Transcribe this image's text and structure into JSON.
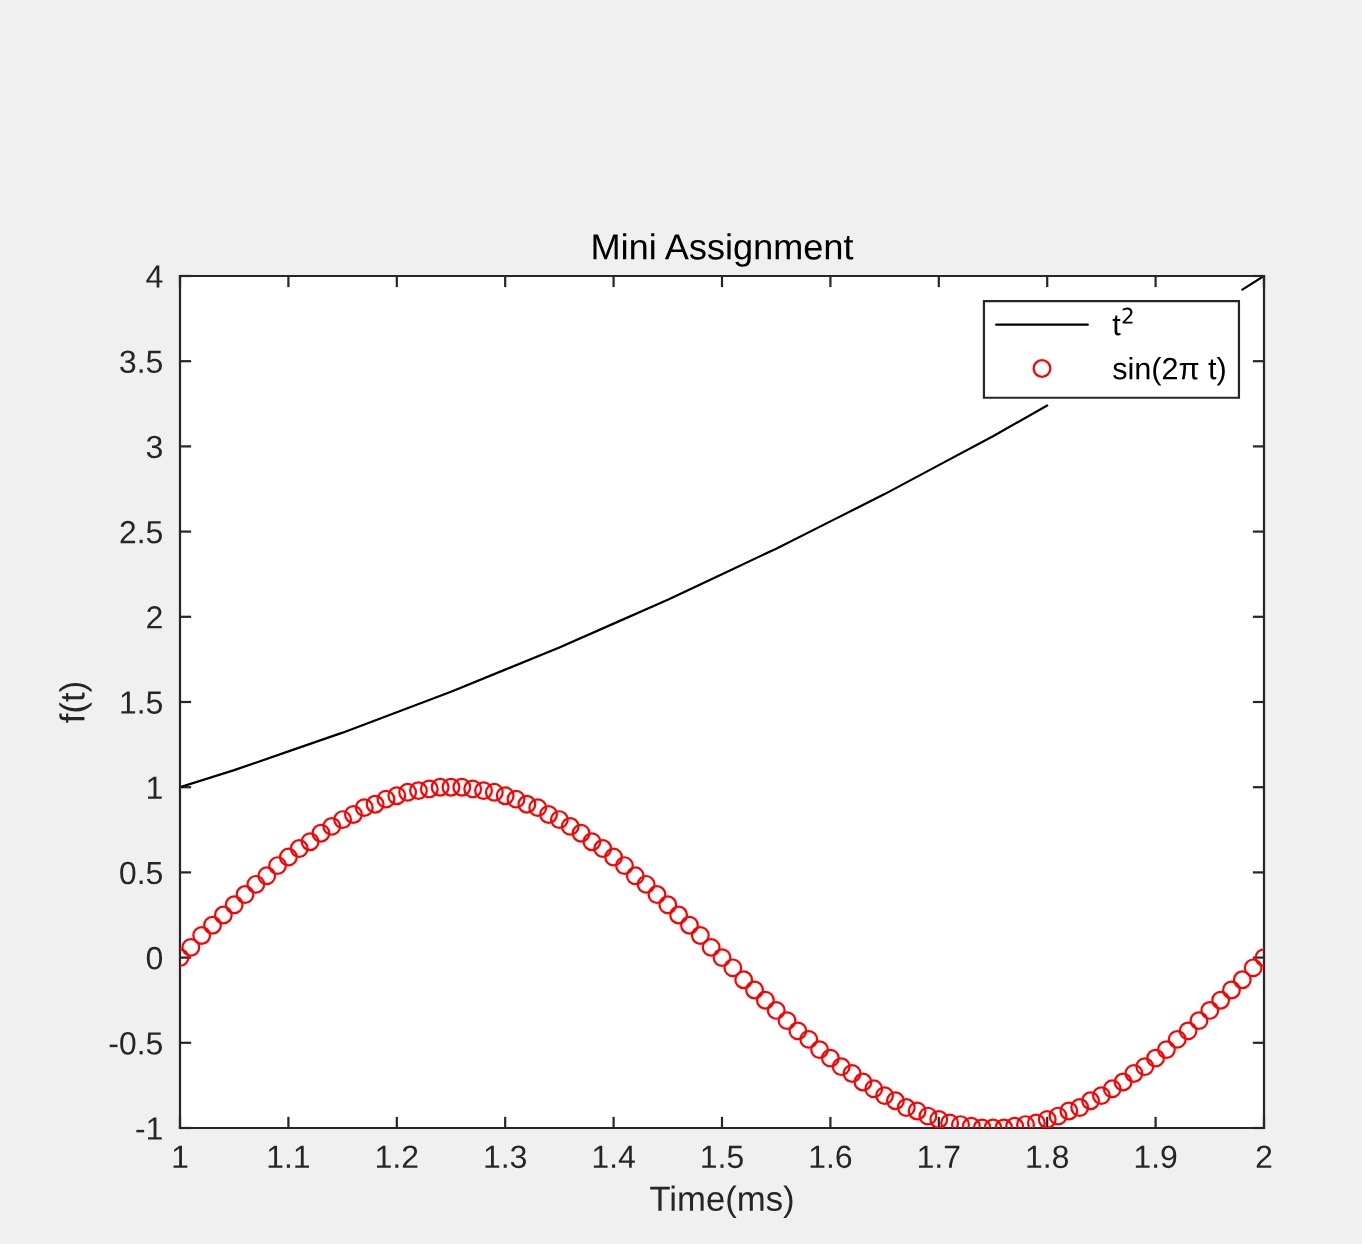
{
  "chart_data": {
    "type": "line",
    "title": "Mini Assignment",
    "xlabel": "Time(ms)",
    "ylabel": "f(t)",
    "xlim": [
      1,
      2
    ],
    "xticks": [
      1,
      1.1,
      1.2,
      1.3,
      1.4,
      1.5,
      1.6,
      1.7,
      1.8,
      1.9,
      2
    ],
    "ylim": [
      -1,
      4
    ],
    "yticks": [
      -1,
      -0.5,
      0,
      0.5,
      1,
      1.5,
      2,
      2.5,
      3,
      3.5,
      4
    ],
    "legend": "top right",
    "series": [
      {
        "name": "t$^{2}$",
        "color": "#000000",
        "marker": "none",
        "line_style": "solid",
        "x": [
          1,
          1.05,
          1.1,
          1.15,
          1.2,
          1.25,
          1.3,
          1.35,
          1.4,
          1.45,
          1.5,
          1.55,
          1.6,
          1.65,
          1.7,
          1.75,
          1.8,
          1.85,
          1.9,
          1.95,
          1.98,
          2
        ],
        "values": [
          1,
          1.1,
          1.21,
          1.32,
          1.44,
          1.56,
          1.69,
          1.82,
          1.96,
          2.1,
          2.25,
          2.4,
          2.56,
          2.72,
          2.89,
          3.06,
          3.24,
          null,
          null,
          null,
          3.92,
          4
        ]
      },
      {
        "name": "sin(2π t)",
        "type": "scatter",
        "color": "#ff0000",
        "marker": "circle",
        "x": [
          1,
          1.01,
          1.02,
          1.03,
          1.04,
          1.05,
          1.06,
          1.07,
          1.08,
          1.09,
          1.1,
          1.11,
          1.12,
          1.13,
          1.14,
          1.15,
          1.16,
          1.17,
          1.18,
          1.19,
          1.2,
          1.21,
          1.22,
          1.23,
          1.24,
          1.25,
          1.26,
          1.27,
          1.28,
          1.29,
          1.3,
          1.31,
          1.32,
          1.33,
          1.34,
          1.35,
          1.36,
          1.37,
          1.38,
          1.39,
          1.4,
          1.41,
          1.42,
          1.43,
          1.44,
          1.45,
          1.46,
          1.47,
          1.48,
          1.49,
          1.5,
          1.51,
          1.52,
          1.53,
          1.54,
          1.55,
          1.56,
          1.57,
          1.58,
          1.59,
          1.6,
          1.61,
          1.62,
          1.63,
          1.64,
          1.65,
          1.66,
          1.67,
          1.68,
          1.69,
          1.7,
          1.71,
          1.72,
          1.73,
          1.74,
          1.75,
          1.76,
          1.77,
          1.78,
          1.79,
          1.8,
          1.81,
          1.82,
          1.83,
          1.84,
          1.85,
          1.86,
          1.87,
          1.88,
          1.89,
          1.9,
          1.91,
          1.92,
          1.93,
          1.94,
          1.95,
          1.96,
          1.97,
          1.98,
          1.99,
          2
        ],
        "values": [
          0,
          0.06,
          0.13,
          0.19,
          0.25,
          0.31,
          0.37,
          0.43,
          0.48,
          0.54,
          0.59,
          0.64,
          0.68,
          0.73,
          0.77,
          0.81,
          0.84,
          0.88,
          0.9,
          0.93,
          0.95,
          0.97,
          0.98,
          0.99,
          1,
          1,
          1,
          0.99,
          0.98,
          0.97,
          0.95,
          0.93,
          0.9,
          0.88,
          0.84,
          0.81,
          0.77,
          0.73,
          0.68,
          0.64,
          0.59,
          0.54,
          0.48,
          0.43,
          0.37,
          0.31,
          0.25,
          0.19,
          0.13,
          0.06,
          0,
          -0.06,
          -0.13,
          -0.19,
          -0.25,
          -0.31,
          -0.37,
          -0.43,
          -0.48,
          -0.54,
          -0.59,
          -0.64,
          -0.68,
          -0.73,
          -0.77,
          -0.81,
          -0.84,
          -0.88,
          -0.9,
          -0.93,
          -0.95,
          -0.97,
          -0.98,
          -0.99,
          -1,
          -1,
          -1,
          -0.99,
          -0.98,
          -0.97,
          -0.95,
          -0.93,
          -0.9,
          -0.88,
          -0.84,
          -0.81,
          -0.77,
          -0.73,
          -0.68,
          -0.64,
          -0.59,
          -0.54,
          -0.48,
          -0.43,
          -0.37,
          -0.31,
          -0.25,
          -0.19,
          -0.13,
          -0.06,
          0
        ]
      }
    ]
  }
}
